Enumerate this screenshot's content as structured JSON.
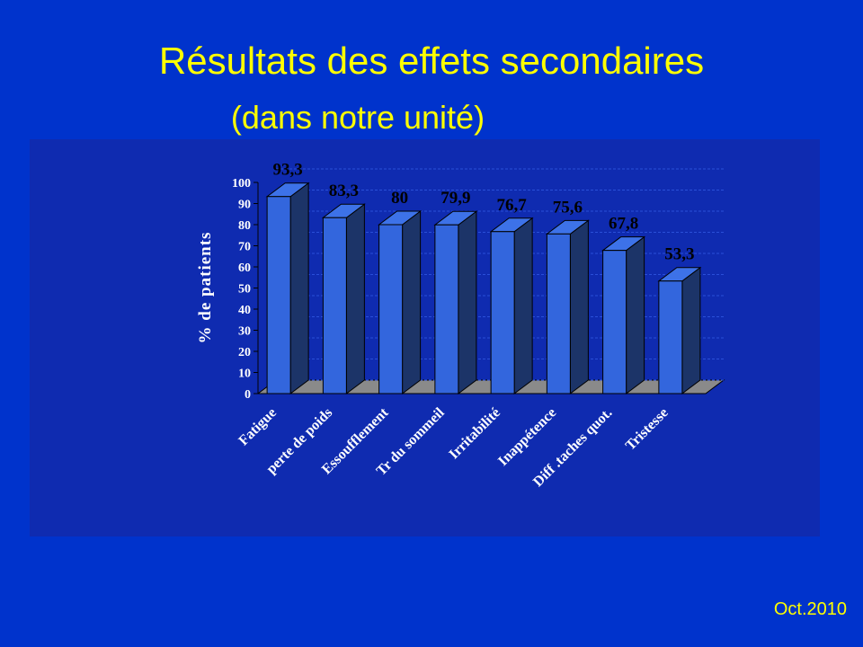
{
  "chart_data": {
    "type": "bar3d",
    "title": "Résultats des effets secondaires",
    "subtitle": "(dans notre unité)",
    "y_label": "% de patients",
    "footer": "Oct.2010",
    "categories": [
      "Fatigue",
      "perte de poids",
      "Essoufflement",
      "Tr du sommeil",
      "Irritabilité",
      "Inappétence",
      "Diff .taches quot.",
      "Tristesse"
    ],
    "values": [
      93.3,
      83.3,
      80,
      79.9,
      76.7,
      75.6,
      67.8,
      53.3
    ],
    "value_labels": [
      "93,3",
      "83,3",
      "80",
      "79,9",
      "76,7",
      "75,6",
      "67,8",
      "53,3"
    ],
    "color": "#3366dd",
    "ylim": [
      0,
      100
    ],
    "yticks": [
      0,
      10,
      20,
      30,
      40,
      50,
      60,
      70,
      80,
      90,
      100
    ],
    "grid": true
  }
}
